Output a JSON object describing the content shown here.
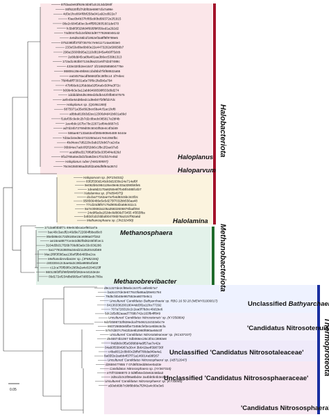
{
  "colors": {
    "halobacteriota_bar": "#a3122a",
    "methanobacteriota_bar": "#1f6b2c",
    "thermoproteota_bar": "#1a2fa0",
    "halo_shade": "#fbe6e9",
    "haloparvum_shade": "#fbf3de",
    "methano_shade": "#e3f2ea",
    "bathy_shade": "#eef2ff",
    "nitrosotalea_shade": "#efeafa",
    "nitrososphaera_shade": "#f7e8f3"
  },
  "phyla": {
    "halobacteriota": "Halobacteriota",
    "methanobacteriota": "Methanobacteriota",
    "thermoproteota": "Thermoproteota"
  },
  "groups": {
    "haloplanus": "Haloplanus",
    "haloparvum": "Haloparvum",
    "halolamina": "Halolamina",
    "methanosphaera": "Methanosphaera",
    "methanobrevibacter": "Methanobrevibacter",
    "unclassified_bathy_prefix": "Unclassified ",
    "unclassified_bathy_name": "Bathyarchaeia",
    "nitrosotenuis": "'Candidatus Nitrosotenuis'",
    "nitrosotaleaceae": "Unclassified 'Candidatus Nitrosotaleaceae'",
    "nitrososphaeraceae": "Unclassified 'Candidatus Nitrososphaeraceae'",
    "nitrososphaera": "'Candidatus Nitrososphaera'"
  },
  "scale_bar": "0.05",
  "tips": [
    "87fdaa3e83f926c5b5f1dc313dd260f",
    "00f9220ff1f7d0f03e6987cfa7a99e",
    "4d3e1fce864f0bf258a041a92cd022e7",
    "f0ae0b4b37fcf85e90bd99372e2f1915",
    "08e2c6845d0ec3e4ff5f0280f1601de670",
    "fc5b8f3f32bfd4f695fbf056ed1a292d2",
    "74d0047bd134fd923d97778265048142",
    "4e6d5c55b1f1952ef3a8ff6f9789e5",
    "075239bff37bf73570c7e9411714ae303e0",
    "233e53e8be6b60e22e4473202e58656b7",
    "298a15606b95a2110d81845a4b9f75dcb",
    "2e88dd45ca8fa481aa3b6ec539b1313",
    "172ad1463b07134d9a221e5f7d2d7488c",
    "433e320b2ee1647 1f21682585804776e",
    "86806c28e49b84c1bd5bd7f4f68922a55",
    "ea04576acdf56663f3c38f0cc4 1f7ebec",
    "7fd4fa8ff73031a6e70f6c2fa5b6a794",
    "47bf66eb11f6ddda02f54a6c50f4a3f72c",
    "b09b4b3e3a12abb9499598f033d0d274",
    "1ddddd84d5c98ed2bdb442f4fb8047575",
    "aefe4be54d8bedc1d9eb07f2f8f1b7dc",
    "Haloplanus sp. (QG861369)",
    "6875971a35e892bec6ba4cf1ac1fef8",
    "a8bba816b3d2ee12306d4d41b601a89d",
    "f1def35c9e9c2b7d2c8bedc085817e2bf4b",
    "1ee4b9c167bc7bc22671ef84e9687c5",
    "ad7d24b72769d00c5043f53e4c4f3d49",
    "586ae67133a53e4f390e909e5489 8444e",
    "7d3acb4ed6e2722250a1e17e4c084fbc",
    "4bd4eee7d6220e3ab1f1feb67ca2c6a",
    "06b94ee7adc0f2f1bb6c1fbc2f2ae97a5",
    "acafdfed3178f6df3d3e33f34f4e826d",
    "9f1d765a5ed3d1f3a8d3e17f41fcb7e45d",
    "Haloplanus ruber (HM159597)",
    "76c94350065ad02fd2a06df8f94a367d",
    "Haloparvum sp. (KF234331)",
    "83f2f330d146dc9d1630e24e714af0f",
    "9e062b6c984126e49e6c03a3390b6fe5",
    "1dea9d2170a8250e6f7b48f4485fc4b7",
    "Halolamina sp. (FN894975)",
    "d1cba77162ae7a7b4d83c5bc3c0f2c",
    "958566486e5e5d275f7032bb556aa48",
    "77cd24d6f57c75d900af2a58c611c1",
    "9a7e30692a105a35832606876faaf094",
    "24e9f6a0a1f1bbc8d866d73455 4f355f8a",
    "b4fdcfcd1f4bbd004706b78a2157f92a6d",
    "Methanosphaera sp. (JN192498)",
    "1713a8f4bbf71 69e0c5bca1ef601a7a",
    "bac48c3acdf2c46d9e722684fbbed6c8",
    "85eb86e3c72d9165e15ce896a07f152",
    "ae16ea8877ce4e2d82f0d6245f4fcec1",
    "3164d3b317f26b709d83a6c33c036286",
    "5a1779163609a34ed2113520c62b69",
    "Mac2f8f3f3b5aa136ef5fb6485be2ca",
    "Methanobrevibacter sp. (JF682184)",
    "c803304c2c5ae6a3c36ba98554fa59",
    "c12ca7f3f56f0c2b5fa2a4e0204615ff",
    "660135f2ff1f99f299f2f282ee44153e2e",
    "09d172ef234dbd995a47d855edc780a",
    "d9c1327de2cf85ebc3c07b a6fe9b7a7",
    "ba3cc07de3e6776c0fa86ad29e81784",
    "79d5cf4b48e967553ea6070e5c1",
    "Uncultured 'Candidatus Bathyarchaeia' sp. RBG 16 50 20 (MEMY01000017)",
    "8413633820018044dd3f2a11fce77292",
    "707a728316c2c2ea0f78dcc40d1be6",
    "6dc2d5d82aaad7789b742e163fb4ff849",
    "Uncultured 'Candidatus Nitrosotenuis' sp. (KY356864)",
    "6d2f2598732f828edcaf7649212c023ebc7e",
    "860726650ebfbe73456cfef3e1e5b6c6cfa",
    "5767d307c7942b3e9b2960f690ae56c0f",
    "Uncultured 'Candidatus Nitrosotaleaceae' sp. (KC437107)",
    "d546874b1067 0db066ec26c3f4cc3693e8",
    "f4d9b0c0f5e56fd8d4a6f57ae7e42e",
    "04a60f3384987a30c4 3b641ba4f398736f",
    "c4ba8012c8b00c2bffef788dad49a4a1",
    "8a65f2e2aebb4f37f71a146014a99f267",
    "Uncultured 'Candidatus Nitrososphaera' sp. (AB712047)",
    "d2659477855 7 07d6f03edd84ee0a33e",
    "Candidatus Nitrososphaera sp. (AY367310)",
    "e70f73368870 3 0d9fb6ecb0e63c56ba3",
    "2d5cd10c3f06a8bd4e 2a4bb0b4b3e2b0",
    "Uncultured 'Candidatus Nitrososphaera' sp. (KY33040)",
    "a50eb69b7c9bf9b98a7f2f42a4c00e3e6"
  ]
}
